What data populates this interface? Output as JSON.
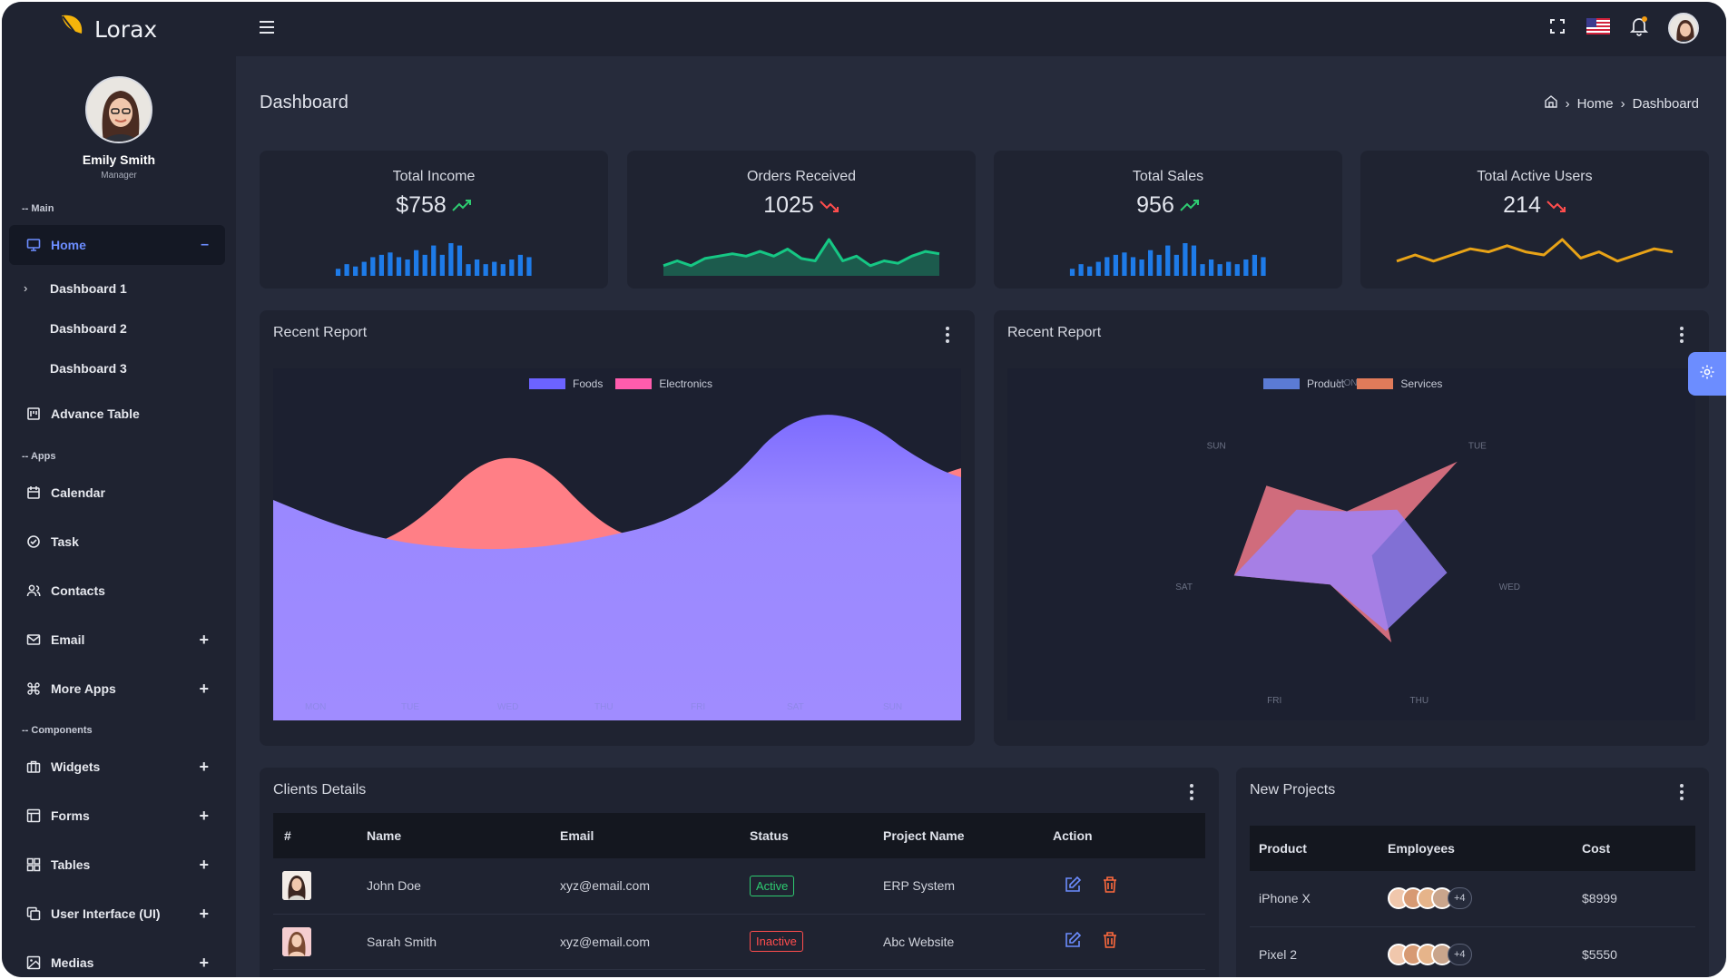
{
  "brand": {
    "name": "Lorax",
    "logo_icon": "leaf-icon",
    "accent": "#f5b40b"
  },
  "profile": {
    "name": "Emily Smith",
    "role": "Manager"
  },
  "sidebar": {
    "sections": {
      "main": "-- Main",
      "apps": "-- Apps",
      "components": "-- Components"
    },
    "home": {
      "label": "Home",
      "icon": "monitor-icon",
      "state": "expanded"
    },
    "home_sub": [
      "Dashboard 1",
      "Dashboard 2",
      "Dashboard 3"
    ],
    "items": [
      {
        "label": "Advance Table",
        "icon": "table-icon",
        "expandable": false
      },
      {
        "label": "Calendar",
        "icon": "calendar-icon",
        "expandable": false
      },
      {
        "label": "Task",
        "icon": "check-circle-icon",
        "expandable": false
      },
      {
        "label": "Contacts",
        "icon": "users-icon",
        "expandable": false
      },
      {
        "label": "Email",
        "icon": "mail-icon",
        "expandable": true
      },
      {
        "label": "More Apps",
        "icon": "command-icon",
        "expandable": true
      },
      {
        "label": "Widgets",
        "icon": "briefcase-icon",
        "expandable": true
      },
      {
        "label": "Forms",
        "icon": "layout-icon",
        "expandable": true
      },
      {
        "label": "Tables",
        "icon": "grid-icon",
        "expandable": true
      },
      {
        "label": "User Interface (UI)",
        "icon": "copy-icon",
        "expandable": true
      },
      {
        "label": "Medias",
        "icon": "image-icon",
        "expandable": true
      }
    ]
  },
  "topbar": {
    "icons": [
      "menu-icon",
      "fullscreen-icon",
      "us-flag-icon",
      "bell-icon",
      "user-avatar"
    ]
  },
  "header": {
    "title": "Dashboard",
    "breadcrumb": [
      "Home",
      "Dashboard"
    ]
  },
  "stats": [
    {
      "label": "Total Income",
      "value": "$758",
      "trend": "up",
      "chart": "bar",
      "color": "#1e7be8",
      "series": [
        3,
        5,
        4,
        6,
        8,
        9,
        10,
        8,
        7,
        11,
        9,
        13,
        9,
        14,
        13,
        5,
        7,
        5,
        6,
        5,
        7,
        9,
        8
      ]
    },
    {
      "label": "Orders Received",
      "value": "1025",
      "trend": "down",
      "chart": "area",
      "color": "#16c784",
      "series": [
        2,
        4,
        2,
        5,
        6,
        7,
        6,
        8,
        6,
        9,
        5,
        4,
        13,
        4,
        6,
        2,
        4,
        3,
        6,
        8,
        7
      ]
    },
    {
      "label": "Total Sales",
      "value": "956",
      "trend": "up",
      "chart": "bar",
      "color": "#1e7be8",
      "series": [
        3,
        5,
        4,
        6,
        8,
        9,
        10,
        8,
        7,
        11,
        9,
        13,
        9,
        14,
        13,
        5,
        7,
        5,
        6,
        5,
        7,
        9,
        8
      ]
    },
    {
      "label": "Total Active Users",
      "value": "214",
      "trend": "down",
      "chart": "line",
      "color": "#e8a317",
      "series": [
        3,
        5,
        3,
        5,
        7,
        6,
        8,
        6,
        5,
        10,
        4,
        6,
        3,
        5,
        7,
        6
      ]
    }
  ],
  "trend_colors": {
    "up": "#2ecc71",
    "down": "#ff4d4d"
  },
  "report_area": {
    "title": "Recent Report",
    "chart_data": {
      "type": "area",
      "categories": [
        "MON",
        "TUE",
        "WED",
        "THU",
        "FRI",
        "SAT",
        "SUN"
      ],
      "series": [
        {
          "name": "Foods",
          "color": "#6c63ff"
        },
        {
          "name": "Electronics",
          "color": "#ff5cad"
        }
      ]
    }
  },
  "report_radar": {
    "title": "Recent Report",
    "chart_data": {
      "type": "radar",
      "categories": [
        "MON",
        "TUE",
        "WED",
        "THU",
        "FRI",
        "SAT",
        "SUN"
      ],
      "series": [
        {
          "name": "Product",
          "color": "#5b7bd5",
          "values": [
            3,
            5,
            8,
            7,
            3,
            9,
            5
          ]
        },
        {
          "name": "Services",
          "color": "#e07b5a",
          "values": [
            3,
            11,
            2,
            8,
            3,
            9,
            8
          ]
        }
      ]
    }
  },
  "clients": {
    "title": "Clients Details",
    "columns": [
      "#",
      "Name",
      "Email",
      "Status",
      "Project Name",
      "Action"
    ],
    "rows": [
      {
        "name": "John Doe",
        "email": "xyz@email.com",
        "status": "Active",
        "project": "ERP System"
      },
      {
        "name": "Sarah Smith",
        "email": "xyz@email.com",
        "status": "Inactive",
        "project": "Abc Website"
      }
    ]
  },
  "projects": {
    "title": "New Projects",
    "columns": [
      "Product",
      "Employees",
      "Cost"
    ],
    "rows": [
      {
        "product": "iPhone X",
        "more": "+4",
        "cost": "$8999"
      },
      {
        "product": "Pixel 2",
        "more": "+4",
        "cost": "$5550"
      }
    ]
  }
}
